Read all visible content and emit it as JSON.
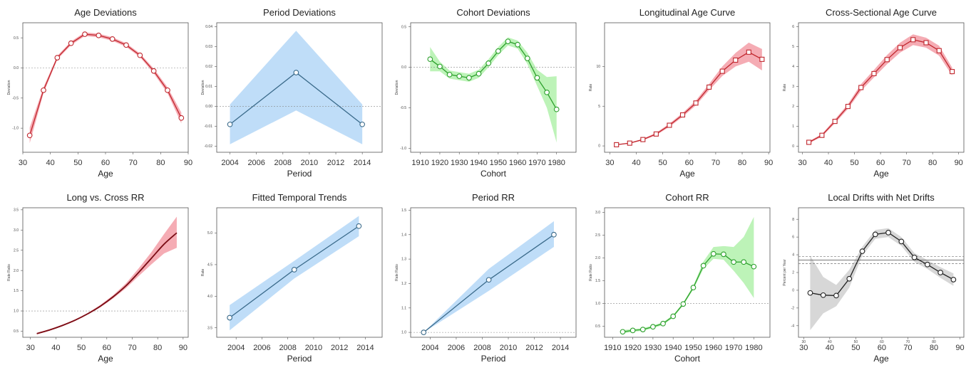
{
  "chart_data": [
    {
      "type": "line",
      "title": "Age Deviations",
      "xlabel": "Age",
      "ylabel": "Deviation",
      "xlim": [
        30,
        90
      ],
      "ylim": [
        -1.4,
        0.75
      ],
      "xticks": [
        30,
        40,
        50,
        60,
        70,
        80,
        90
      ],
      "yticks": [
        -1.0,
        -0.5,
        0.0,
        0.5
      ],
      "yticklabels": [
        "-1.0",
        "-0.5",
        "0.0",
        "0.5"
      ],
      "refline": 0.0,
      "color": "#c0262d",
      "band_color": "#f4a3ac",
      "marker": "circle",
      "x": [
        32.5,
        37.5,
        42.5,
        47.5,
        52.5,
        57.5,
        62.5,
        67.5,
        72.5,
        77.5,
        82.5,
        87.5
      ],
      "y": [
        -1.12,
        -0.37,
        0.17,
        0.41,
        0.56,
        0.54,
        0.48,
        0.38,
        0.21,
        -0.05,
        -0.37,
        -0.83
      ],
      "lower": [
        -1.25,
        -0.42,
        0.14,
        0.38,
        0.53,
        0.51,
        0.45,
        0.35,
        0.18,
        -0.09,
        -0.42,
        -0.92
      ],
      "upper": [
        -0.99,
        -0.32,
        0.2,
        0.44,
        0.59,
        0.57,
        0.51,
        0.41,
        0.24,
        -0.01,
        -0.32,
        -0.74
      ]
    },
    {
      "type": "line",
      "title": "Period Deviations",
      "xlabel": "Period",
      "ylabel": "Deviation",
      "xlim": [
        2003,
        2015.5
      ],
      "ylim": [
        -0.023,
        0.042
      ],
      "xticks": [
        2004,
        2006,
        2008,
        2010,
        2012,
        2014
      ],
      "yticks": [
        -0.02,
        -0.01,
        0.0,
        0.01,
        0.02,
        0.03,
        0.04
      ],
      "yticklabels": [
        "-0.02",
        "-0.01",
        "0.00",
        "0.01",
        "0.02",
        "0.03",
        "0.04"
      ],
      "refline": 0.0,
      "color": "#3a6a8a",
      "band_color": "#b8d9f7",
      "marker": "circle",
      "x": [
        2004,
        2009,
        2014
      ],
      "y": [
        -0.009,
        0.017,
        -0.009
      ],
      "lower": [
        -0.019,
        -0.002,
        -0.019
      ],
      "upper": [
        0.001,
        0.038,
        0.001
      ]
    },
    {
      "type": "line",
      "title": "Cohort Deviations",
      "xlabel": "Cohort",
      "ylabel": "Deviation",
      "xlim": [
        1905,
        1990
      ],
      "ylim": [
        -1.05,
        0.55
      ],
      "xticks": [
        1910,
        1920,
        1930,
        1940,
        1950,
        1960,
        1970,
        1980
      ],
      "yticks": [
        -1.0,
        -0.5,
        0.0,
        0.5
      ],
      "yticklabels": [
        "-1.0",
        "-0.5",
        "0.0",
        "0.5"
      ],
      "refline": 0.0,
      "color": "#2ca02c",
      "band_color": "#b6f2b0",
      "marker": "circle",
      "x": [
        1915,
        1920,
        1925,
        1930,
        1935,
        1940,
        1945,
        1950,
        1955,
        1960,
        1965,
        1970,
        1975,
        1980
      ],
      "y": [
        0.1,
        0.01,
        -0.09,
        -0.11,
        -0.13,
        -0.08,
        0.05,
        0.2,
        0.32,
        0.28,
        0.11,
        -0.13,
        -0.31,
        -0.52
      ],
      "lower": [
        -0.05,
        -0.05,
        -0.14,
        -0.16,
        -0.18,
        -0.13,
        0.0,
        0.15,
        0.27,
        0.23,
        0.04,
        -0.23,
        -0.5,
        -0.93
      ],
      "upper": [
        0.25,
        0.07,
        -0.04,
        -0.06,
        -0.08,
        -0.03,
        0.1,
        0.25,
        0.37,
        0.33,
        0.18,
        -0.03,
        -0.12,
        -0.11
      ]
    },
    {
      "type": "line",
      "title": "Longitudinal Age Curve",
      "xlabel": "Age",
      "ylabel": "Rate",
      "xlim": [
        28,
        90.5
      ],
      "ylim": [
        -0.8,
        15.5
      ],
      "xticks": [
        30,
        40,
        50,
        60,
        70,
        80,
        90
      ],
      "yticks": [
        0,
        5,
        10
      ],
      "yticklabels": [
        "0",
        "5",
        "10"
      ],
      "color": "#c0262d",
      "band_color": "#f4a3ac",
      "marker": "square",
      "x": [
        32.5,
        37.5,
        42.5,
        47.5,
        52.5,
        57.5,
        62.5,
        67.5,
        72.5,
        77.5,
        82.5,
        87.5
      ],
      "y": [
        0.15,
        0.35,
        0.8,
        1.5,
        2.6,
        3.9,
        5.4,
        7.4,
        9.4,
        10.8,
        11.8,
        10.9
      ],
      "lower": [
        0.1,
        0.3,
        0.7,
        1.35,
        2.4,
        3.65,
        5.1,
        7.0,
        8.8,
        10.0,
        10.6,
        9.5
      ],
      "upper": [
        0.2,
        0.4,
        0.9,
        1.65,
        2.8,
        4.15,
        5.7,
        7.8,
        10.0,
        11.7,
        13.0,
        12.2
      ]
    },
    {
      "type": "line",
      "title": "Cross-Sectional Age Curve",
      "xlabel": "Age",
      "ylabel": "Rate",
      "xlim": [
        28.5,
        92
      ],
      "ylim": [
        -0.3,
        6.2
      ],
      "xticks": [
        30,
        40,
        50,
        60,
        70,
        80,
        90
      ],
      "yticks": [
        0,
        1,
        2,
        3,
        4,
        5,
        6
      ],
      "yticklabels": [
        "0",
        "1",
        "2",
        "3",
        "4",
        "5",
        "6"
      ],
      "color": "#c0262d",
      "band_color": "#f4a3ac",
      "marker": "square",
      "x": [
        32.5,
        37.5,
        42.5,
        47.5,
        52.5,
        57.5,
        62.5,
        67.5,
        72.5,
        77.5,
        82.5,
        87.5
      ],
      "y": [
        0.2,
        0.55,
        1.25,
        2.0,
        2.95,
        3.65,
        4.35,
        4.95,
        5.35,
        5.2,
        4.8,
        3.75
      ],
      "lower": [
        0.15,
        0.48,
        1.15,
        1.88,
        2.78,
        3.46,
        4.12,
        4.7,
        5.08,
        4.95,
        4.55,
        3.55
      ],
      "upper": [
        0.25,
        0.62,
        1.35,
        2.12,
        3.12,
        3.84,
        4.58,
        5.2,
        5.62,
        5.45,
        5.05,
        3.95
      ]
    },
    {
      "type": "line",
      "title": "Long vs. Cross RR",
      "xlabel": "Age",
      "ylabel": "Rate Ratio",
      "xlim": [
        27,
        92
      ],
      "ylim": [
        0.35,
        3.55
      ],
      "xticks": [
        30,
        40,
        50,
        60,
        70,
        80,
        90
      ],
      "yticks": [
        0.5,
        1.0,
        1.5,
        2.0,
        2.5,
        3.0,
        3.5
      ],
      "yticklabels": [
        "0.5",
        "1.0",
        "1.5",
        "2.0",
        "2.5",
        "3.0",
        "3.5"
      ],
      "refline": 1.0,
      "color": "#7a0c14",
      "band_color": "#f4a3ac",
      "marker": "none",
      "x": [
        32.5,
        37.5,
        42.5,
        47.5,
        52.5,
        57.5,
        62.5,
        67.5,
        72.5,
        77.5,
        82.5,
        87.5
      ],
      "y": [
        0.44,
        0.53,
        0.64,
        0.77,
        0.93,
        1.12,
        1.35,
        1.62,
        1.95,
        2.3,
        2.65,
        2.93
      ],
      "lower": [
        0.42,
        0.51,
        0.62,
        0.75,
        0.91,
        1.09,
        1.31,
        1.56,
        1.86,
        2.15,
        2.42,
        2.56
      ],
      "upper": [
        0.46,
        0.55,
        0.66,
        0.79,
        0.95,
        1.15,
        1.39,
        1.68,
        2.05,
        2.45,
        2.9,
        3.33
      ]
    },
    {
      "type": "line",
      "title": "Fitted Temporal Trends",
      "xlabel": "Period",
      "ylabel": "Rate",
      "xlim": [
        2002.5,
        2015.3
      ],
      "ylim": [
        3.35,
        5.4
      ],
      "xticks": [
        2004,
        2006,
        2008,
        2010,
        2012,
        2014
      ],
      "yticks": [
        3.5,
        4.0,
        4.5,
        5.0
      ],
      "yticklabels": [
        "3.5",
        "4.0",
        "4.5",
        "5.0"
      ],
      "color": "#3a6a8a",
      "band_color": "#b8d9f7",
      "marker": "circle",
      "x": [
        2003.5,
        2008.5,
        2013.5
      ],
      "y": [
        3.66,
        4.42,
        5.11
      ],
      "lower": [
        3.46,
        4.28,
        4.95
      ],
      "upper": [
        3.86,
        4.56,
        5.27
      ]
    },
    {
      "type": "line",
      "title": "Period RR",
      "xlabel": "Period",
      "ylabel": "Rate Ratio",
      "xlim": [
        2002.5,
        2015.2
      ],
      "ylim": [
        0.98,
        1.51
      ],
      "xticks": [
        2004,
        2006,
        2008,
        2010,
        2012,
        2014
      ],
      "yticks": [
        1.0,
        1.1,
        1.2,
        1.3,
        1.4,
        1.5
      ],
      "yticklabels": [
        "1.0",
        "1.1",
        "1.2",
        "1.3",
        "1.4",
        "1.5"
      ],
      "refline": 1.0,
      "color": "#3a6a8a",
      "band_color": "#b8d9f7",
      "marker": "circle",
      "x": [
        2003.5,
        2008.5,
        2013.5
      ],
      "y": [
        1.0,
        1.215,
        1.4
      ],
      "lower": [
        1.0,
        1.17,
        1.35
      ],
      "upper": [
        1.0,
        1.26,
        1.455
      ]
    },
    {
      "type": "line",
      "title": "Cohort RR",
      "xlabel": "Cohort",
      "ylabel": "Rate Ratio",
      "xlim": [
        1906,
        1988
      ],
      "ylim": [
        0.26,
        3.1
      ],
      "xticks": [
        1910,
        1920,
        1930,
        1940,
        1950,
        1960,
        1970,
        1980
      ],
      "yticks": [
        0.5,
        1.0,
        1.5,
        2.0,
        2.5,
        3.0
      ],
      "yticklabels": [
        "0.5",
        "1.0",
        "1.5",
        "2.0",
        "2.5",
        "3.0"
      ],
      "refline": 1.0,
      "color": "#2ca02c",
      "band_color": "#b6f2b0",
      "marker": "circle",
      "x": [
        1915,
        1920,
        1925,
        1930,
        1935,
        1940,
        1945,
        1950,
        1955,
        1960,
        1965,
        1970,
        1975,
        1980
      ],
      "y": [
        0.38,
        0.41,
        0.43,
        0.49,
        0.56,
        0.72,
        0.99,
        1.35,
        1.83,
        2.09,
        2.08,
        1.91,
        1.91,
        1.81
      ],
      "lower": [
        0.34,
        0.38,
        0.4,
        0.46,
        0.53,
        0.69,
        0.96,
        1.31,
        1.76,
        1.98,
        1.96,
        1.72,
        1.45,
        1.12
      ],
      "upper": [
        0.42,
        0.44,
        0.46,
        0.52,
        0.59,
        0.75,
        1.02,
        1.39,
        1.92,
        2.24,
        2.26,
        2.24,
        2.46,
        2.9
      ]
    },
    {
      "type": "line",
      "title": "Local Drifts with Net Drifts",
      "xlabel": "Age",
      "ylabel": "Percent per Year",
      "xlim": [
        28,
        91.5
      ],
      "ylim": [
        -5.3,
        9.3
      ],
      "xticks": [
        30,
        40,
        50,
        60,
        70,
        80,
        90
      ],
      "yticks": [
        -4,
        -2,
        0,
        2,
        4,
        6,
        8
      ],
      "yticklabels": [
        "-4",
        "-2",
        "0",
        "2",
        "4",
        "6",
        "8"
      ],
      "minor_xticks": [
        30,
        40,
        50,
        60,
        70,
        80
      ],
      "net_drift": 3.4,
      "net_drift_ci": [
        3.0,
        3.8
      ],
      "color": "#222222",
      "band_color": "#d3d3d3",
      "marker": "circle",
      "x": [
        32.5,
        37.5,
        42.5,
        47.5,
        52.5,
        57.5,
        62.5,
        67.5,
        72.5,
        77.5,
        82.5,
        87.5
      ],
      "y": [
        -0.3,
        -0.55,
        -0.6,
        1.3,
        4.4,
        6.3,
        6.5,
        5.5,
        3.7,
        2.9,
        2.0,
        1.2
      ],
      "lower": [
        -4.5,
        -2.6,
        -1.8,
        0.3,
        3.9,
        5.8,
        6.0,
        5.0,
        3.2,
        2.4,
        1.4,
        0.5
      ],
      "upper": [
        3.9,
        1.5,
        0.6,
        2.3,
        4.9,
        6.8,
        7.0,
        6.0,
        4.2,
        3.4,
        2.6,
        1.9
      ]
    }
  ]
}
